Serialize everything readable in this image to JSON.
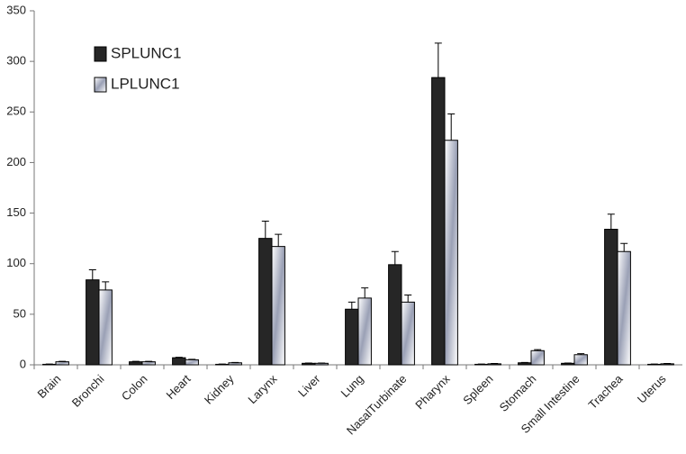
{
  "chart_data": {
    "type": "bar",
    "categories": [
      "Brain",
      "Bronchi",
      "Colon",
      "Heart",
      "Kidney",
      "Larynx",
      "Liver",
      "Lung",
      "NasalTurbinate",
      "Pharynx",
      "Spleen",
      "Stomach",
      "Small Intestine",
      "Trachea",
      "Uterus"
    ],
    "series": [
      {
        "name": "SPLUNC1",
        "color": "#262626",
        "values": [
          0.5,
          84,
          3,
          7,
          0.5,
          125,
          1.5,
          55,
          99,
          284,
          0.5,
          2,
          1.5,
          134,
          0.5
        ],
        "errors": [
          0.3,
          10,
          0.5,
          0.5,
          0.3,
          17,
          0.3,
          7,
          13,
          34,
          0.3,
          0.3,
          0.3,
          15,
          0.3
        ]
      },
      {
        "name": "LPLUNC1",
        "color": "#9aa0b5",
        "values": [
          3,
          74,
          3,
          5,
          2,
          117,
          1.5,
          66,
          62,
          222,
          1,
          14,
          10,
          112,
          1
        ],
        "errors": [
          0.5,
          8,
          0.5,
          0.5,
          0.3,
          12,
          0.3,
          10,
          7,
          26,
          0.3,
          1,
          1,
          8,
          0.3
        ]
      }
    ],
    "ylim": [
      0,
      350
    ],
    "yticks": [
      0,
      50,
      100,
      150,
      200,
      250,
      300,
      350
    ],
    "grid": false,
    "legend": "upper left"
  }
}
